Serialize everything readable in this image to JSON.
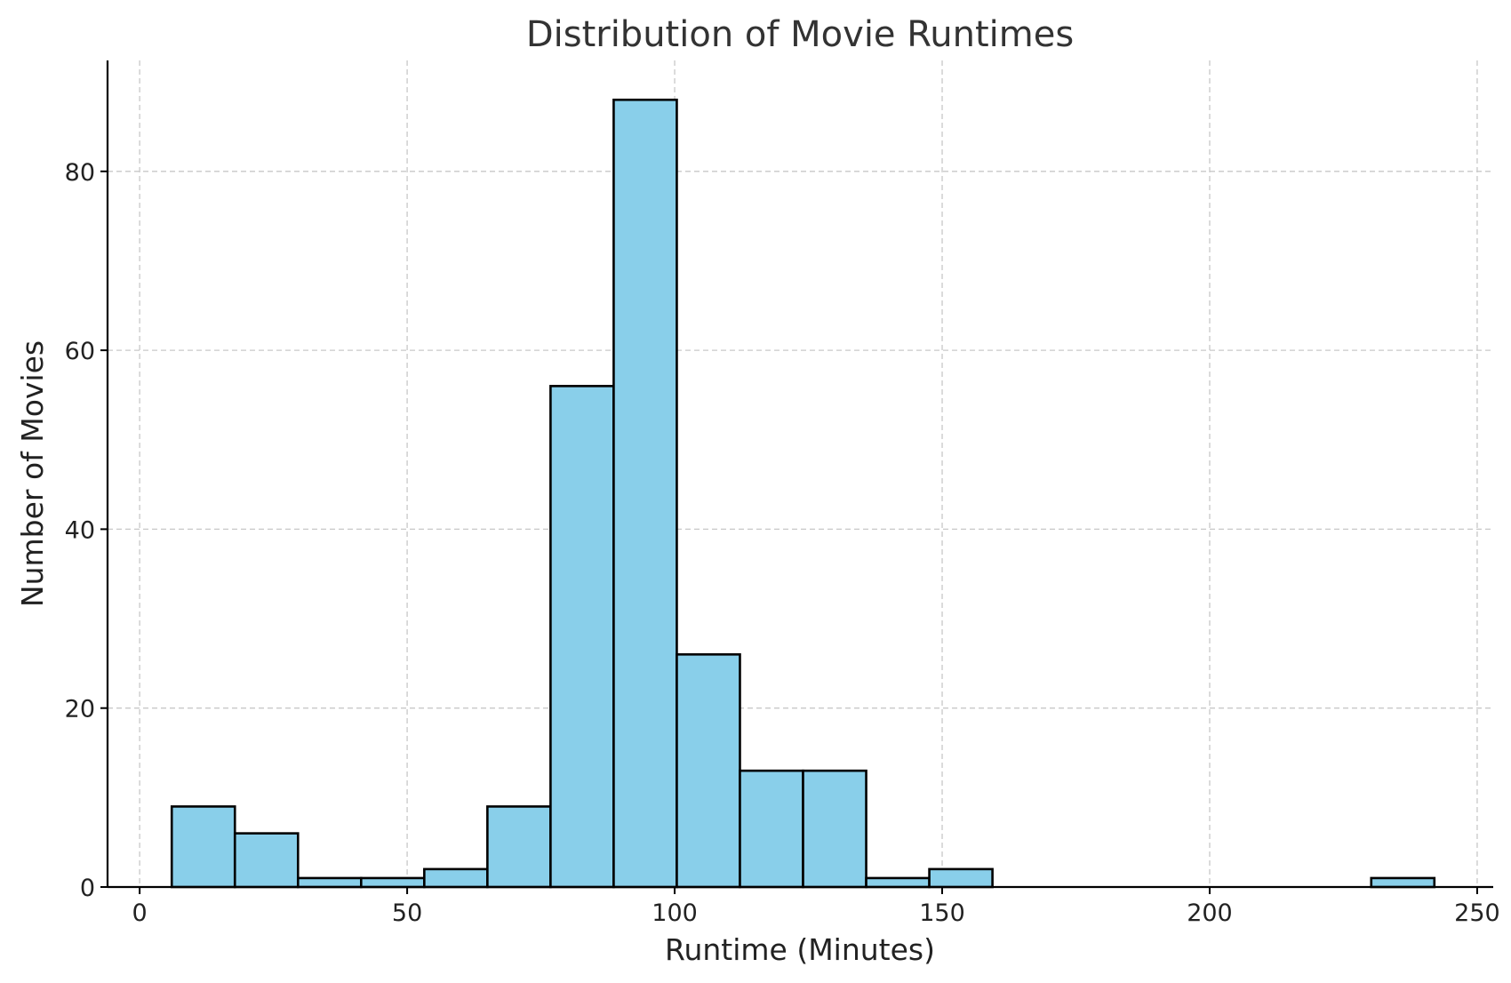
{
  "chart_data": {
    "type": "bar",
    "title": "Distribution of Movie Runtimes",
    "xlabel": "Runtime (Minutes)",
    "ylabel": "Number of Movies",
    "xlim": [
      -6,
      253
    ],
    "ylim": [
      0,
      92.4
    ],
    "x_ticks": [
      0,
      50,
      100,
      150,
      200,
      250
    ],
    "y_ticks": [
      0,
      20,
      40,
      60,
      80
    ],
    "grid": true,
    "bar_color": "#89CFEA",
    "edge_color": "#000000",
    "bins": [
      {
        "x0": 6.0,
        "x1": 17.8,
        "count": 9
      },
      {
        "x0": 17.8,
        "x1": 29.6,
        "count": 6
      },
      {
        "x0": 29.6,
        "x1": 41.4,
        "count": 1
      },
      {
        "x0": 41.4,
        "x1": 53.2,
        "count": 1
      },
      {
        "x0": 53.2,
        "x1": 65.0,
        "count": 2
      },
      {
        "x0": 65.0,
        "x1": 76.8,
        "count": 9
      },
      {
        "x0": 76.8,
        "x1": 88.6,
        "count": 56
      },
      {
        "x0": 88.6,
        "x1": 100.4,
        "count": 88
      },
      {
        "x0": 100.4,
        "x1": 112.2,
        "count": 26
      },
      {
        "x0": 112.2,
        "x1": 124.0,
        "count": 13
      },
      {
        "x0": 124.0,
        "x1": 135.8,
        "count": 13
      },
      {
        "x0": 135.8,
        "x1": 147.6,
        "count": 1
      },
      {
        "x0": 147.6,
        "x1": 159.4,
        "count": 2
      },
      {
        "x0": 159.4,
        "x1": 171.2,
        "count": 0
      },
      {
        "x0": 171.2,
        "x1": 183.0,
        "count": 0
      },
      {
        "x0": 183.0,
        "x1": 194.8,
        "count": 0
      },
      {
        "x0": 194.8,
        "x1": 206.6,
        "count": 0
      },
      {
        "x0": 206.6,
        "x1": 218.4,
        "count": 0
      },
      {
        "x0": 218.4,
        "x1": 230.2,
        "count": 0
      },
      {
        "x0": 230.2,
        "x1": 242.0,
        "count": 1
      }
    ]
  }
}
